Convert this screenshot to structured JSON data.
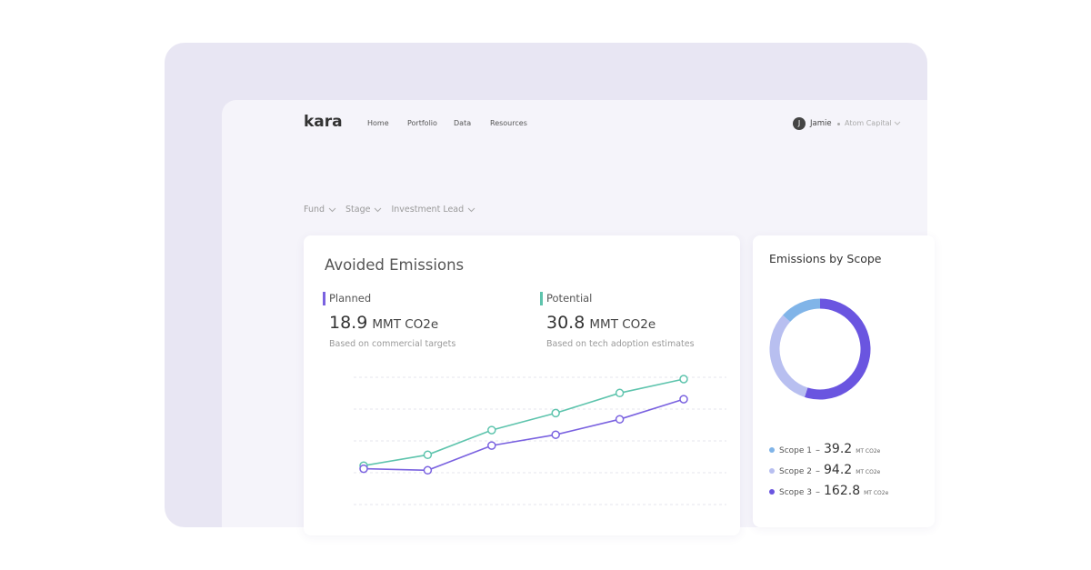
{
  "nav": {
    "logo": "kara",
    "links": [
      "Home",
      "Portfolio",
      "Data",
      "Resources"
    ],
    "user": {
      "initial": "J",
      "name": "Jamie",
      "org": "Atom Capital"
    }
  },
  "filters": [
    "Fund",
    "Stage",
    "Investment Lead"
  ],
  "avoided_emissions": {
    "title": "Avoided Emissions",
    "metrics": [
      {
        "name": "Planned",
        "value": 18.9,
        "unit": "MMT CO2e",
        "note": "Based on commercial targets",
        "color": "#7a62e0"
      },
      {
        "name": "Potential",
        "value": 30.8,
        "unit": "MMT CO2e",
        "note": "Based on tech adoption estimates",
        "color": "#5ec4ad"
      }
    ]
  },
  "chart_data": [
    {
      "type": "line",
      "categories": [
        null,
        null,
        null,
        null,
        null,
        null
      ],
      "ylim": [
        0,
        100
      ],
      "series": [
        {
          "name": "Potential",
          "color": "#5ec4ad",
          "values": [
            34,
            41,
            57,
            68,
            81,
            90
          ]
        },
        {
          "name": "Planned",
          "color": "#7a62e0",
          "values": [
            32,
            31,
            47,
            54,
            64,
            77
          ]
        }
      ]
    },
    {
      "type": "donut",
      "title": "Emissions by Scope",
      "categories": [
        "Scope 1",
        "Scope 2",
        "Scope 3"
      ],
      "values": [
        39.2,
        94.2,
        162.8
      ],
      "unit": "MT CO2e",
      "separator": "–",
      "colors": [
        "#80b4e8",
        "#b8bff0",
        "#6a55e0"
      ]
    }
  ]
}
